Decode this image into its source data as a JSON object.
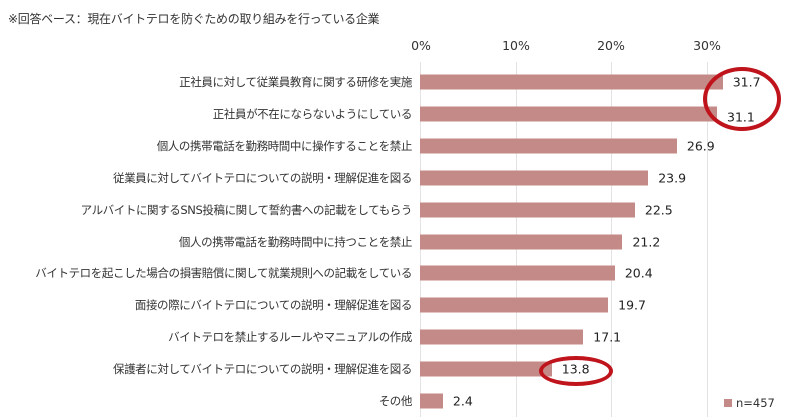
{
  "note": "※回答ベース：現在バイトテロを防ぐための取り組みを行っている企業",
  "axis": {
    "ticks": [
      "0%",
      "10%",
      "20%",
      "30%"
    ]
  },
  "legend": {
    "label": "n=457"
  },
  "colors": {
    "bar": "#c48a87",
    "highlight": "#c0141c"
  },
  "rows": [
    {
      "label": "正社員に対して従業員教育に関する研修を実施",
      "value": "31.7"
    },
    {
      "label": "正社員が不在にならないようにしている",
      "value": "31.1"
    },
    {
      "label": "個人の携帯電話を勤務時間中に操作することを禁止",
      "value": "26.9"
    },
    {
      "label": "従業員に対してバイトテロについての説明・理解促進を図る",
      "value": "23.9"
    },
    {
      "label": "アルバイトに関するSNS投稿に関して誓約書への記載をしてもらう",
      "value": "22.5"
    },
    {
      "label": "個人の携帯電話を勤務時間中に持つことを禁止",
      "value": "21.2"
    },
    {
      "label": "バイトテロを起こした場合の損害賠償に関して就業規則への記載をしている",
      "value": "20.4"
    },
    {
      "label": "面接の際にバイトテロについての説明・理解促進を図る",
      "value": "19.7"
    },
    {
      "label": "バイトテロを禁止するルールやマニュアルの作成",
      "value": "17.1"
    },
    {
      "label": "保護者に対してバイトテロについての説明・理解促進を図る",
      "value": "13.8"
    },
    {
      "label": "その他",
      "value": "2.4"
    }
  ],
  "chart_data": {
    "type": "bar",
    "orientation": "horizontal",
    "title": "",
    "subtitle": "※回答ベース：現在バイトテロを防ぐための取り組みを行っている企業",
    "categories": [
      "正社員に対して従業員教育に関する研修を実施",
      "正社員が不在にならないようにしている",
      "個人の携帯電話を勤務時間中に操作することを禁止",
      "従業員に対してバイトテロについての説明・理解促進を図る",
      "アルバイトに関するSNS投稿に関して誓約書への記載をしてもらう",
      "個人の携帯電話を勤務時間中に持つことを禁止",
      "バイトテロを起こした場合の損害賠償に関して就業規則への記載をしている",
      "面接の際にバイトテロについての説明・理解促進を図る",
      "バイトテロを禁止するルールやマニュアルの作成",
      "保護者に対してバイトテロについての説明・理解促進を図る",
      "その他"
    ],
    "series": [
      {
        "name": "n=457",
        "values": [
          31.7,
          31.1,
          26.9,
          23.9,
          22.5,
          21.2,
          20.4,
          19.7,
          17.1,
          13.8,
          2.4
        ]
      }
    ],
    "xlabel": "",
    "ylabel": "",
    "xlim": [
      0,
      35
    ],
    "xticks": [
      "0%",
      "10%",
      "20%",
      "30%"
    ],
    "axis_position": "top",
    "grid": true,
    "legend_position": "bottom-right",
    "annotations": [
      {
        "type": "ellipse",
        "target": [
          "31.7",
          "31.1"
        ],
        "color": "#c0141c"
      },
      {
        "type": "ellipse",
        "target": [
          "13.8"
        ],
        "color": "#c0141c"
      }
    ]
  }
}
